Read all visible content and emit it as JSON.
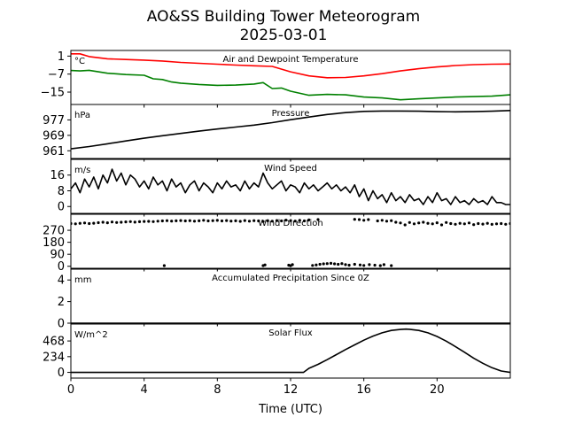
{
  "figure": {
    "title_line1": "AO&SS Building Tower Meteorogram",
    "title_line2": "2025-03-01",
    "xlabel": "Time (UTC)"
  },
  "x_axis": {
    "range": [
      0,
      24
    ],
    "ticks": [
      0,
      4,
      8,
      12,
      16,
      20
    ],
    "tick_labels": [
      "0",
      "4",
      "8",
      "12",
      "16",
      "20"
    ]
  },
  "chart_data": [
    {
      "type": "line",
      "title": "Air and Dewpoint Temperature",
      "unit_label": "°C",
      "ylim": [
        -20.5,
        3.5
      ],
      "yticks": [
        1,
        -7,
        -15
      ],
      "ytick_labels": [
        "1",
        "−7",
        "−15"
      ],
      "series": [
        {
          "color": "#ff0000",
          "x": [
            0,
            0.5,
            1,
            2,
            3,
            4,
            5,
            6,
            7,
            8,
            9,
            10,
            11,
            12,
            13,
            14,
            15,
            16,
            17,
            18,
            19,
            20,
            21,
            22,
            23,
            24
          ],
          "y": [
            2,
            2,
            0.8,
            -0.2,
            -0.5,
            -0.8,
            -1.2,
            -1.8,
            -2.2,
            -2.6,
            -3.0,
            -3.3,
            -3.6,
            -6.0,
            -7.8,
            -8.6,
            -8.5,
            -7.8,
            -6.8,
            -5.6,
            -4.6,
            -3.8,
            -3.2,
            -2.8,
            -2.6,
            -2.5
          ]
        },
        {
          "color": "#008000",
          "x": [
            0,
            0.5,
            1,
            2,
            3,
            4,
            4.5,
            5,
            5.5,
            6,
            7,
            8,
            9,
            10,
            10.5,
            11,
            11.5,
            12,
            13,
            14,
            15,
            16,
            17,
            18,
            19,
            20,
            21,
            22,
            23,
            24
          ],
          "y": [
            -5.4,
            -5.6,
            -5.3,
            -6.6,
            -7.2,
            -7.5,
            -9.1,
            -9.4,
            -10.5,
            -11.0,
            -11.6,
            -12.0,
            -11.9,
            -11.4,
            -10.8,
            -13.4,
            -13.2,
            -14.6,
            -16.4,
            -16.0,
            -16.2,
            -17.2,
            -17.6,
            -18.4,
            -18.0,
            -17.6,
            -17.2,
            -17.0,
            -16.8,
            -16.2
          ]
        }
      ]
    },
    {
      "type": "line",
      "title": "Pressure",
      "unit_label": "hPa",
      "ylim": [
        957,
        985
      ],
      "yticks": [
        977,
        969,
        961
      ],
      "ytick_labels": [
        "977",
        "969",
        "961"
      ],
      "series": [
        {
          "color": "#000000",
          "x": [
            0,
            1,
            2,
            3,
            4,
            5,
            6,
            7,
            8,
            9,
            10,
            11,
            12,
            13,
            14,
            15,
            16,
            17,
            18,
            19,
            20,
            21,
            22,
            23,
            24
          ],
          "y": [
            962.0,
            963.2,
            964.6,
            966.1,
            967.5,
            968.8,
            970.0,
            971.2,
            972.3,
            973.3,
            974.3,
            975.6,
            977.1,
            978.5,
            979.8,
            980.8,
            981.4,
            981.6,
            981.6,
            981.5,
            981.3,
            981.2,
            981.3,
            981.5,
            981.9
          ]
        }
      ]
    },
    {
      "type": "line",
      "title": "Wind Speed",
      "unit_label": "m/s",
      "ylim": [
        -3.5,
        24
      ],
      "yticks": [
        16,
        8,
        0
      ],
      "ytick_labels": [
        "16",
        "8",
        "0"
      ],
      "series": [
        {
          "color": "#000000",
          "x": [
            0,
            0.25,
            0.5,
            0.75,
            1,
            1.25,
            1.5,
            1.75,
            2,
            2.25,
            2.5,
            2.75,
            3,
            3.25,
            3.5,
            3.75,
            4,
            4.25,
            4.5,
            4.75,
            5,
            5.25,
            5.5,
            5.75,
            6,
            6.25,
            6.5,
            6.75,
            7,
            7.25,
            7.5,
            7.75,
            8,
            8.25,
            8.5,
            8.75,
            9,
            9.25,
            9.5,
            9.75,
            10,
            10.25,
            10.5,
            10.75,
            11,
            11.25,
            11.5,
            11.75,
            12,
            12.25,
            12.5,
            12.75,
            13,
            13.25,
            13.5,
            13.75,
            14,
            14.25,
            14.5,
            14.75,
            15,
            15.25,
            15.5,
            15.75,
            16,
            16.25,
            16.5,
            16.75,
            17,
            17.25,
            17.5,
            17.75,
            18,
            18.25,
            18.5,
            18.75,
            19,
            19.25,
            19.5,
            19.75,
            20,
            20.25,
            20.5,
            20.75,
            21,
            21.25,
            21.5,
            21.75,
            22,
            22.25,
            22.5,
            22.75,
            23,
            23.25,
            23.5,
            23.75,
            24
          ],
          "y": [
            9,
            12,
            7,
            14,
            10,
            15,
            9,
            16,
            12,
            19,
            13,
            17,
            11,
            16,
            14,
            10,
            13,
            9,
            15,
            11,
            13,
            8,
            14,
            10,
            12,
            7,
            11,
            13,
            8,
            12,
            10,
            7,
            12,
            9,
            13,
            10,
            11,
            8,
            13,
            9,
            12,
            10,
            17,
            12,
            9,
            11,
            13,
            8,
            11,
            10,
            7,
            12,
            9,
            11,
            8,
            10,
            12,
            9,
            11,
            8,
            10,
            7,
            11,
            5,
            9,
            3,
            8,
            4,
            6,
            2,
            7,
            3,
            5,
            2,
            6,
            3,
            4,
            1,
            5,
            2,
            7,
            3,
            4,
            1,
            5,
            2,
            3,
            1,
            4,
            2,
            3,
            1,
            5,
            2,
            2,
            1,
            1
          ]
        }
      ]
    },
    {
      "type": "scatter",
      "title": "Wind Direction",
      "unit_label": "",
      "ylim": [
        -15,
        390
      ],
      "yticks": [
        270,
        180,
        90,
        0
      ],
      "ytick_labels": [
        "270",
        "180",
        "90",
        "0"
      ],
      "series": [
        {
          "color": "#000000",
          "x": [
            0,
            0.25,
            0.5,
            0.75,
            1,
            1.25,
            1.5,
            1.75,
            2,
            2.25,
            2.5,
            2.75,
            3,
            3.25,
            3.5,
            3.75,
            4,
            4.25,
            4.5,
            4.75,
            5,
            5.25,
            5.5,
            5.75,
            6,
            6.25,
            6.5,
            6.75,
            7,
            7.25,
            7.5,
            7.75,
            8,
            8.25,
            8.5,
            8.75,
            9,
            9.25,
            9.5,
            9.75,
            10,
            10.25,
            10.5,
            10.75,
            11,
            11.25,
            11.5,
            11.75,
            12,
            12.25,
            12.5,
            12.75,
            13,
            13.5,
            15.5,
            15.75,
            16,
            16.25,
            16.75,
            17,
            17.25,
            17.5,
            17.75,
            18,
            18.25,
            18.5,
            18.75,
            19,
            19.25,
            19.5,
            19.75,
            20,
            20.25,
            20.5,
            20.75,
            21,
            21.25,
            21.5,
            21.75,
            22,
            22.25,
            22.5,
            22.75,
            23,
            23.25,
            23.5,
            23.75,
            24,
            5.1,
            10.5,
            10.6,
            11.9,
            12.0,
            12.1,
            13.2,
            13.4,
            13.6,
            13.8,
            14.0,
            14.2,
            14.4,
            14.6,
            14.8,
            15.0,
            15.2,
            15.5,
            15.8,
            16.0,
            16.3,
            16.6,
            16.9,
            17.1,
            17.5
          ],
          "y": [
            320,
            318,
            322,
            325,
            320,
            323,
            327,
            330,
            326,
            332,
            328,
            330,
            333,
            335,
            331,
            334,
            336,
            337,
            335,
            338,
            340,
            342,
            339,
            341,
            343,
            340,
            342,
            338,
            341,
            345,
            340,
            342,
            344,
            340,
            343,
            339,
            341,
            337,
            343,
            338,
            342,
            340,
            336,
            341,
            338,
            343,
            340,
            346,
            342,
            339,
            344,
            340,
            348,
            350,
            352,
            350,
            345,
            350,
            340,
            345,
            338,
            342,
            330,
            325,
            310,
            328,
            318,
            325,
            330,
            322,
            318,
            326,
            310,
            328,
            320,
            315,
            322,
            318,
            325,
            312,
            320,
            316,
            322,
            314,
            318,
            320,
            315,
            320,
            5,
            5,
            10,
            8,
            4,
            12,
            6,
            10,
            15,
            18,
            20,
            22,
            18,
            15,
            20,
            12,
            8,
            15,
            10,
            6,
            12,
            8,
            5,
            12,
            5
          ]
        }
      ]
    },
    {
      "type": "line",
      "title": "Accumulated Precipitation Since 0Z",
      "unit_label": "mm",
      "ylim": [
        0,
        5
      ],
      "yticks": [
        4,
        2,
        0
      ],
      "ytick_labels": [
        "4",
        "2",
        "0"
      ],
      "series": [
        {
          "color": "#000000",
          "x": [
            0,
            24
          ],
          "y": [
            0,
            0
          ]
        }
      ]
    },
    {
      "type": "line",
      "title": "Solar Flux",
      "unit_label": "W/m^2",
      "ylim": [
        -85,
        720
      ],
      "yticks": [
        468,
        234,
        0
      ],
      "ytick_labels": [
        "468",
        "234",
        "0"
      ],
      "series": [
        {
          "color": "#000000",
          "x": [
            0,
            12.7,
            13.0,
            13.5,
            14.0,
            14.5,
            15.0,
            15.5,
            16.0,
            16.5,
            17.0,
            17.5,
            18.0,
            18.3,
            18.5,
            19.0,
            19.5,
            20.0,
            20.5,
            21.0,
            21.5,
            22.0,
            22.5,
            23.0,
            23.5,
            24
          ],
          "y": [
            0,
            0,
            60,
            120,
            190,
            265,
            340,
            410,
            480,
            540,
            590,
            625,
            640,
            645,
            642,
            625,
            590,
            535,
            465,
            385,
            300,
            210,
            135,
            70,
            20,
            0
          ]
        }
      ]
    }
  ]
}
